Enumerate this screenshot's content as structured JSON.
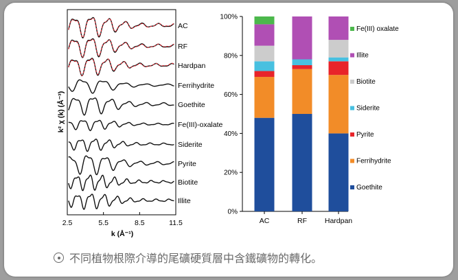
{
  "caption": {
    "text": "不同植物根際介導的尾礦硬質層中含鐵礦物的轉化。"
  },
  "chart_data": [
    {
      "type": "line",
      "xlabel": "k (Å⁻¹)",
      "ylabel": "k² χ (k) (Å⁻³)",
      "xlim": [
        2.5,
        11.5
      ],
      "x_ticks": [
        "2.5",
        "5.5",
        "8.5",
        "11.5"
      ],
      "grid": false,
      "series": [
        {
          "name": "AC",
          "fit": true
        },
        {
          "name": "RF",
          "fit": true
        },
        {
          "name": "Hardpan",
          "fit": true
        },
        {
          "name": "Ferrihydrite",
          "fit": false
        },
        {
          "name": "Goethite",
          "fit": false
        },
        {
          "name": "Fe(III)-oxalate",
          "fit": false
        },
        {
          "name": "Siderite",
          "fit": false
        },
        {
          "name": "Pyrite",
          "fit": false
        },
        {
          "name": "Biotite",
          "fit": false
        },
        {
          "name": "Illite",
          "fit": false
        }
      ],
      "colors": {
        "data": "#111111",
        "fit": "#e8303a"
      }
    },
    {
      "type": "bar",
      "stacked": true,
      "categories": [
        "AC",
        "RF",
        "Hardpan"
      ],
      "ylim": [
        0,
        100
      ],
      "y_ticks": [
        "0%",
        "20%",
        "40%",
        "60%",
        "80%",
        "100%"
      ],
      "legend_position": "right",
      "series": [
        {
          "name": "Goethite",
          "color": "#1f4e9c",
          "values": [
            48,
            50,
            40
          ]
        },
        {
          "name": "Ferrihydrite",
          "color": "#f28c28",
          "values": [
            21,
            23,
            30
          ]
        },
        {
          "name": "Pyrite",
          "color": "#e8242a",
          "values": [
            3,
            2,
            7
          ]
        },
        {
          "name": "Siderite",
          "color": "#48c0e0",
          "values": [
            5,
            3,
            2
          ]
        },
        {
          "name": "Biotite",
          "color": "#cccccc",
          "values": [
            8,
            0,
            9
          ]
        },
        {
          "name": "Illite",
          "color": "#b04fb4",
          "values": [
            11,
            22,
            12
          ]
        },
        {
          "name": "Fe(III) oxalate",
          "color": "#4cb84c",
          "values": [
            4,
            0,
            0
          ]
        }
      ]
    }
  ]
}
